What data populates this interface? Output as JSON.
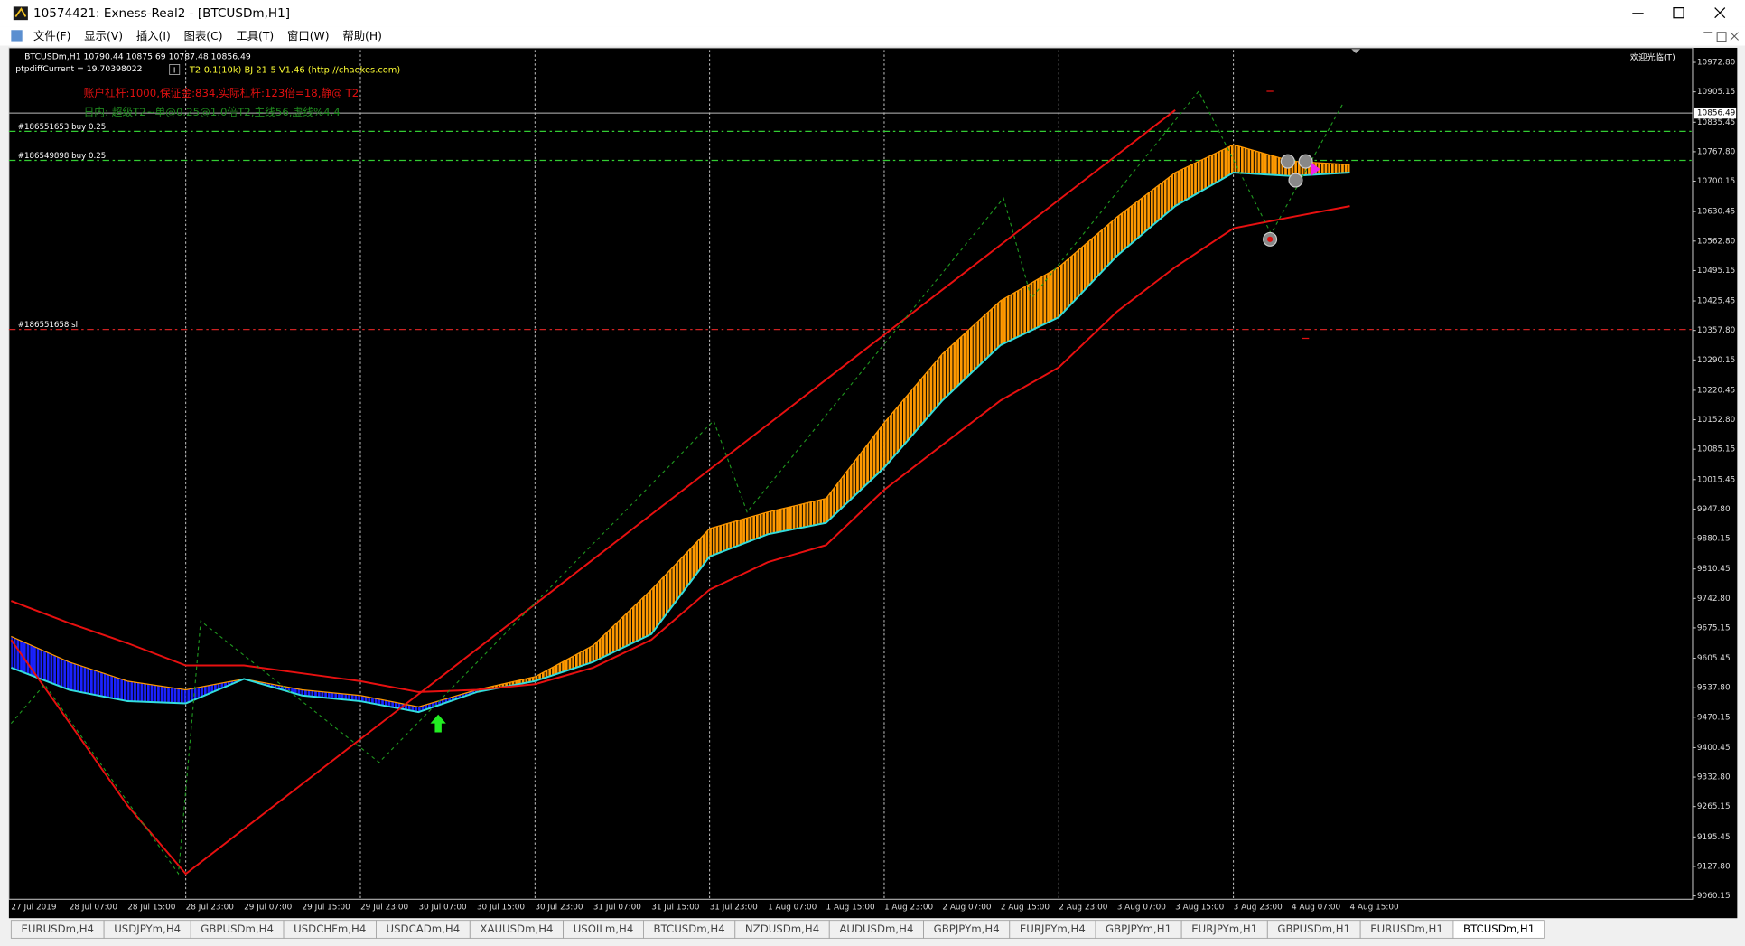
{
  "window": {
    "title": "10574421: Exness-Real2 - [BTCUSDm,H1]"
  },
  "menu": [
    "文件(F)",
    "显示(V)",
    "插入(I)",
    "图表(C)",
    "工具(T)",
    "窗口(W)",
    "帮助(H)"
  ],
  "chart_data": {
    "type": "line",
    "symbol_line": "BTCUSDm,H1 10790.44 10875.69 10787.48 10856.49",
    "indicator_value": "ptpdiffCurrent = 19.70398022",
    "indicator_name": "T2-0.1(10k) BJ 21-5 V1.46 (http://chaokes.com)",
    "note_red": "账户杠杆:1000,保证金:834,实际杠杆:123倍=18,静@ T2",
    "note_green": "日内: 超级T2~单@0.25@1.0倍T2,主线56,虚线%4.4",
    "corner_label": "欢迎光临(T)",
    "categories": [
      "27 Jul 2019",
      "28 Jul 07:00",
      "28 Jul 15:00",
      "28 Jul 23:00",
      "29 Jul 07:00",
      "29 Jul 15:00",
      "29 Jul 23:00",
      "30 Jul 07:00",
      "30 Jul 15:00",
      "30 Jul 23:00",
      "31 Jul 07:00",
      "31 Jul 15:00",
      "31 Jul 23:00",
      "1 Aug 07:00",
      "1 Aug 15:00",
      "1 Aug 23:00",
      "2 Aug 07:00",
      "2 Aug 15:00",
      "2 Aug 23:00",
      "3 Aug 07:00",
      "3 Aug 15:00",
      "3 Aug 23:00",
      "4 Aug 07:00",
      "4 Aug 15:00"
    ],
    "series": [
      {
        "color": "#ff9900",
        "values": [
          9655.5,
          9596.6,
          9553,
          9533,
          9558,
          9533,
          9520,
          9494,
          9533,
          9563,
          9635,
          9763,
          9903,
          9941,
          9972,
          10146,
          10304,
          10426,
          10503,
          10618,
          10720,
          10784,
          10746,
          10738
        ]
      },
      {
        "color": "#33dddd",
        "values": [
          9583.9,
          9532.9,
          9507,
          9502,
          9558,
          9520,
          9507,
          9482,
          9528,
          9553,
          9597,
          9661,
          9839,
          9890,
          9916,
          10043,
          10197,
          10324,
          10388,
          10529,
          10643,
          10720,
          10712,
          10720
        ]
      },
      {
        "color": "#e81010",
        "values": [
          9737,
          9686,
          9640,
          9589,
          9589,
          9571,
          9553,
          9528,
          9533,
          9546,
          9584,
          9648,
          9763,
          9826,
          9865,
          9992,
          10095,
          10197,
          10273,
          10401,
          10503,
          10592,
          10618,
          10643
        ]
      },
      {
        "color": "#e81010",
        "values": [
          9647.8,
          9457.6,
          9267.4,
          9110.7,
          9213.8,
          9316.9,
          9420,
          9523.1,
          9626.2,
          9729.3,
          9832.4,
          9935.5,
          10038.6,
          10141.7,
          10244.8,
          10347.9,
          10451,
          10554.1,
          10657.2,
          10760.3,
          10863.4,
          null,
          null,
          null
        ]
      }
    ],
    "band_colors": [
      "#1a22ff",
      "#1a22ff",
      "#1a22ff",
      "#1a22ff",
      "#1a22ff",
      "#1a22ff",
      "#1a22ff",
      "#1a22ff",
      "#ff9900",
      "#ff9900",
      "#ff9900",
      "#ff9900",
      "#ff9900",
      "#ff9900",
      "#ff9900",
      "#ff9900",
      "#ff9900",
      "#ff9900",
      "#ff9900",
      "#ff9900",
      "#ff9900",
      "#ff9900",
      "#ff9900"
    ],
    "ylim": [
      9052.5,
      11001
    ],
    "yticks": [
      {
        "value": 10972.8,
        "label": "10972.80"
      },
      10905.15,
      10835.45,
      {
        "value": 10767.8,
        "label": "10767.80"
      },
      10700.15,
      10630.45,
      {
        "value": 10562.8,
        "label": "10562.80"
      },
      10495.15,
      10425.45,
      {
        "value": 10357.8,
        "label": "10357.80"
      },
      10290.15,
      10220.45,
      {
        "value": 10152.8,
        "label": "10152.80"
      },
      10085.15,
      10015.45,
      {
        "value": 9947.8,
        "label": "9947.80"
      },
      9880.15,
      9810.45,
      {
        "value": 9742.8,
        "label": "9742.80"
      },
      9675.15,
      9605.45,
      {
        "value": 9537.8,
        "label": "9537.80"
      },
      9470.15,
      9400.45,
      {
        "value": 9332.8,
        "label": "9332.80"
      },
      9265.15,
      9195.45,
      {
        "value": 9127.8,
        "label": "9127.80"
      },
      9060.15
    ],
    "grid": "vertical",
    "current_price": 10856.49,
    "levels": [
      {
        "value": 10814.5,
        "label": "#186551653 buy 0.25",
        "color": "#33cc33"
      },
      {
        "value": 10748,
        "label": "#186549898 buy 0.25",
        "color": "#33cc33"
      },
      {
        "value": 10360,
        "label": "#186551658 sl",
        "color": "#cc2222"
      }
    ]
  },
  "tabs": [
    "EURUSDm,H4",
    "USDJPYm,H4",
    "GBPUSDm,H4",
    "USDCHFm,H4",
    "USDCADm,H4",
    "XAUUSDm,H4",
    "USOILm,H4",
    "BTCUSDm,H4",
    "NZDUSDm,H4",
    "AUDUSDm,H4",
    "GBPJPYm,H4",
    "EURJPYm,H4",
    "GBPJPYm,H1",
    "EURJPYm,H1",
    "GBPUSDm,H1",
    "EURUSDm,H1",
    "BTCUSDm,H1"
  ],
  "active_tab": 16
}
